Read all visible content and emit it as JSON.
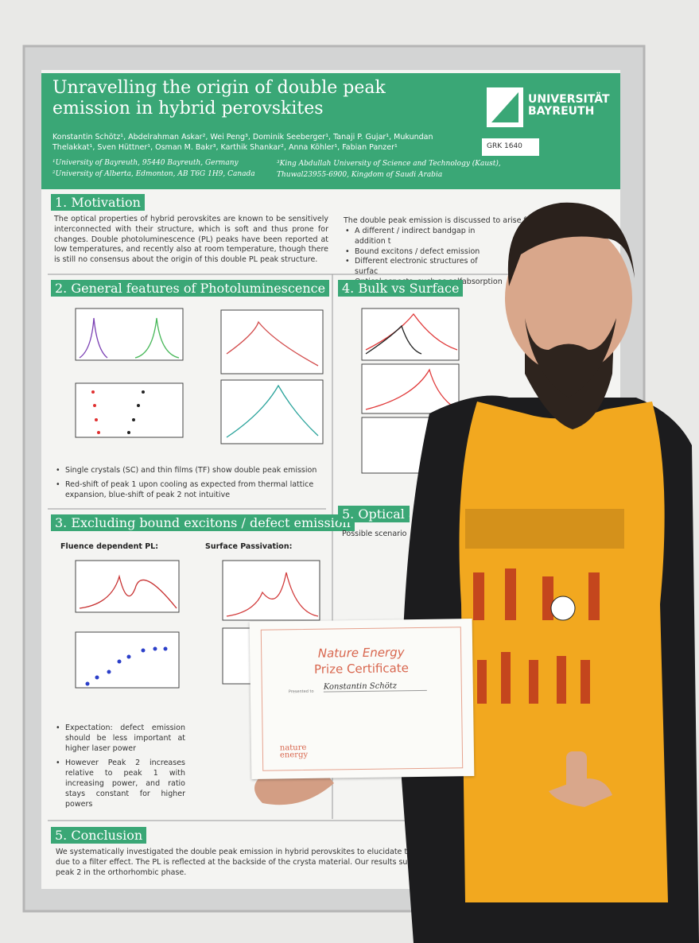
{
  "poster": {
    "title": "Unravelling the origin of double peak emission in hybrid perovskites",
    "authors": "Konstantin Schötz¹, Abdelrahman Askar², Wei Peng³, Dominik Seeberger¹, Tanaji P. Gujar¹, Mukundan Thelakkat¹, Sven Hüttner¹, Osman M. Bakr³, Karthik Shankar², Anna Köhler¹, Fabian Panzer¹",
    "affiliations": [
      "¹University of Bayreuth, 95440 Bayreuth, Germany",
      "²University of Alberta, Edmonton, AB T6G 1H9, Canada",
      "³King Abdullah University of Science and Technology (Kaust), Thuwal23955-6900, Kingdom of Saudi Arabia"
    ],
    "logo": "UNIVERSITÄT BAYREUTH",
    "badge": "GRK 1640",
    "motivation": {
      "heading": "1. Motivation",
      "text": "The optical properties of hybrid perovskites are known to be sensitively interconnected with their structure, which is soft and thus prone for changes. Double photoluminescence (PL) peaks have been reported at low temperatures, and recently also at room temperature, though there is still no consensus about the origin of this double PL peak structure.",
      "right": "The double peak emission is discussed to arise f",
      "bullets": [
        "A different / indirect bandgap in addition t",
        "Bound excitons / defect emission",
        "Different electronic structures of surfac",
        "Optical aspects, such as selfabsorption"
      ]
    },
    "general": {
      "heading": "2. General features of Photoluminescence",
      "bullets": [
        "Single crystals (SC) and thin films (TF) show double peak emission",
        "Red-shift of peak 1 upon cooling as expected from thermal lattice expansion, blue-shift of peak 2 not intuitive"
      ]
    },
    "excluding": {
      "heading": "3. Excluding bound excitons / defect emission",
      "subheads": [
        "Fluence dependent PL:",
        "Surface Passivation:"
      ],
      "bullets": [
        "Expectation: defect emission should be less important at higher laser power",
        "However Peak 2 increases relative to peak 1 with increasing power, and ratio stays constant for higher powers"
      ]
    },
    "bulk": {
      "heading": "4. Bulk vs Surface"
    },
    "optical": {
      "heading": "5. Optical a",
      "text": "Possible scenario"
    },
    "conclusion": {
      "heading": "5. Conclusion",
      "text": "We systematically investigated the double peak emission in hybrid perovskites to elucidate the origin in the tetragonal phase peak 2 is due to a filter effect. The PL is reflected at the backside of the crysta material. Our results suggests that this effect also contributes to peak 2 in the orthorhombic phase."
    }
  },
  "certificate": {
    "journal": "Nature Energy",
    "title": "Prize Certificate",
    "presented": "Presented to",
    "name": "Konstantin Schötz",
    "logo": "nature energy"
  }
}
